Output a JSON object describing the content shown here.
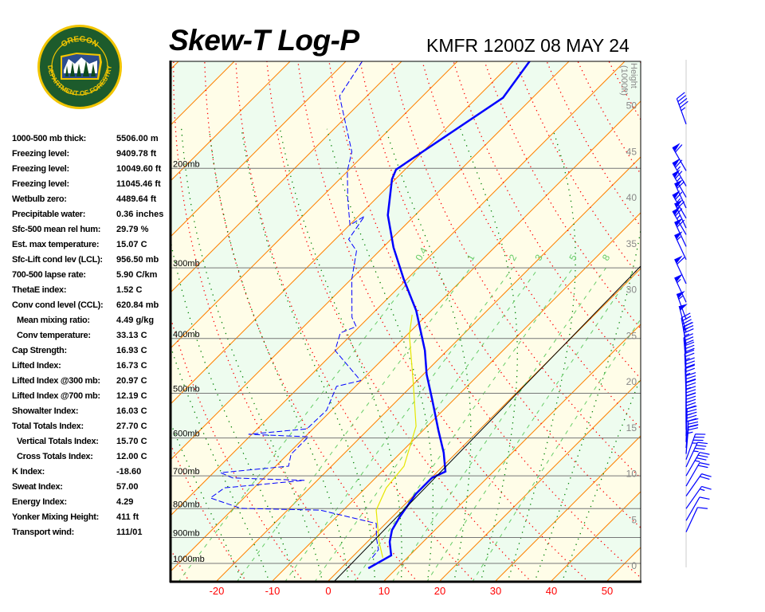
{
  "title": "Skew-T Log-P",
  "station_time": "KMFR 1200Z 08 MAY 24",
  "logo": {
    "top_text": "OREGON",
    "bottom_text": "DEPARTMENT OF FORESTRY",
    "colors": {
      "ring": "#f2c500",
      "field": "#1d5b2c"
    }
  },
  "stats": [
    {
      "label": "1000-500 mb thick:",
      "value": "5506.00 m",
      "indent": false
    },
    {
      "label": "Freezing level:",
      "value": "9409.78 ft",
      "indent": false
    },
    {
      "label": "Freezing level:",
      "value": "10049.60 ft",
      "indent": false
    },
    {
      "label": "Freezing level:",
      "value": "11045.46 ft",
      "indent": false
    },
    {
      "label": "Wetbulb zero:",
      "value": "4489.64 ft",
      "indent": false
    },
    {
      "label": "Precipitable water:",
      "value": "0.36 inches",
      "indent": false
    },
    {
      "label": "Sfc-500 mean rel hum:",
      "value": "29.79 %",
      "indent": false
    },
    {
      "label": "Est. max temperature:",
      "value": "15.07 C",
      "indent": false
    },
    {
      "label": "Sfc-Lift cond lev (LCL):",
      "value": "956.50 mb",
      "indent": false
    },
    {
      "label": "700-500 lapse rate:",
      "value": "5.90 C/km",
      "indent": false
    },
    {
      "label": "ThetaE index:",
      "value": "1.52 C",
      "indent": false
    },
    {
      "label": "Conv cond level (CCL):",
      "value": "620.84 mb",
      "indent": false
    },
    {
      "label": "Mean mixing ratio:",
      "value": "4.49 g/kg",
      "indent": true
    },
    {
      "label": "Conv temperature:",
      "value": "33.13 C",
      "indent": true
    },
    {
      "label": "Cap Strength:",
      "value": "16.93 C",
      "indent": false
    },
    {
      "label": "Lifted Index:",
      "value": "16.73 C",
      "indent": false
    },
    {
      "label": "Lifted Index @300 mb:",
      "value": "20.97 C",
      "indent": false
    },
    {
      "label": "Lifted Index @700 mb:",
      "value": "12.19 C",
      "indent": false
    },
    {
      "label": "Showalter Index:",
      "value": "16.03 C",
      "indent": false
    },
    {
      "label": "Total Totals Index:",
      "value": "27.70 C",
      "indent": false
    },
    {
      "label": "Vertical Totals Index:",
      "value": "15.70 C",
      "indent": true
    },
    {
      "label": "Cross Totals Index:",
      "value": "12.00 C",
      "indent": true
    },
    {
      "label": "K Index:",
      "value": "-18.60",
      "indent": false
    },
    {
      "label": "Sweat Index:",
      "value": "57.00",
      "indent": false
    },
    {
      "label": "Energy Index:",
      "value": "4.29",
      "indent": false
    },
    {
      "label": "Yonker Mixing Height:",
      "value": "411 ft",
      "indent": false
    },
    {
      "label": "Transport wind:",
      "value": "111/01",
      "indent": false
    }
  ],
  "chart_data": {
    "type": "skew-t log-p",
    "pressure_range_mb": [
      1074,
      129
    ],
    "pressure_labels": [
      "200mb",
      "300mb",
      "400mb",
      "500mb",
      "600mb",
      "700mb",
      "800mb",
      "900mb",
      "1000mb"
    ],
    "pressure_levels": [
      200,
      300,
      400,
      500,
      600,
      700,
      800,
      900,
      1000
    ],
    "temperature_ticks": [
      -20,
      -10,
      0,
      10,
      20,
      30,
      40,
      50
    ],
    "height_axis_label": "Height (1000ft)",
    "height_ticks": [
      0,
      5,
      10,
      15,
      20,
      25,
      30,
      35,
      40,
      45,
      50
    ],
    "mixing_ratio_labels": [
      "0.4",
      "1",
      "2",
      "3",
      "5",
      "8"
    ],
    "mixing_ratio_values": [
      0.4,
      1,
      2,
      3,
      5,
      8,
      12,
      20
    ],
    "colors": {
      "temperature": "#0000ff",
      "dewpoint": "#0000ff",
      "wetbulb": "#e6e600",
      "isotherm": "#ff8000",
      "dry_adiabat": "#ff0000",
      "moist_adiabat": "#008000",
      "mixing_ratio": "#66cc66",
      "band_a": "#fffde8",
      "band_b": "#eefcef"
    },
    "temperature_profile": [
      {
        "p": 1020,
        "t": 4.9
      },
      {
        "p": 968,
        "t": 6.7
      },
      {
        "p": 916,
        "t": 4.0
      },
      {
        "p": 873,
        "t": 2.3
      },
      {
        "p": 826,
        "t": 1.3
      },
      {
        "p": 754,
        "t": 0.1
      },
      {
        "p": 706,
        "t": 0.1
      },
      {
        "p": 688,
        "t": 1.4
      },
      {
        "p": 637,
        "t": -2.3
      },
      {
        "p": 581,
        "t": -7.3
      },
      {
        "p": 511,
        "t": -14.1
      },
      {
        "p": 463,
        "t": -19.4
      },
      {
        "p": 420,
        "t": -24.0
      },
      {
        "p": 357,
        "t": -32.7
      },
      {
        "p": 314,
        "t": -40.6
      },
      {
        "p": 276,
        "t": -48.1
      },
      {
        "p": 242,
        "t": -54.9
      },
      {
        "p": 209,
        "t": -60.6
      },
      {
        "p": 201,
        "t": -61.6
      },
      {
        "p": 150,
        "t": -55.3
      },
      {
        "p": 129,
        "t": -57.1
      }
    ],
    "dewpoint_profile": [
      {
        "p": 977,
        "t": 3.7
      },
      {
        "p": 946,
        "t": 3.4
      },
      {
        "p": 901,
        "t": 0.9
      },
      {
        "p": 850,
        "t": -1.7
      },
      {
        "p": 805,
        "t": -14.1
      },
      {
        "p": 799,
        "t": -28.7
      },
      {
        "p": 766,
        "t": -36.0
      },
      {
        "p": 735,
        "t": -35.3
      },
      {
        "p": 713,
        "t": -22.3
      },
      {
        "p": 706,
        "t": -35.6
      },
      {
        "p": 691,
        "t": -38.7
      },
      {
        "p": 673,
        "t": -27.7
      },
      {
        "p": 641,
        "t": -29.4
      },
      {
        "p": 597,
        "t": -29.4
      },
      {
        "p": 591,
        "t": -40.6
      },
      {
        "p": 578,
        "t": -31.1
      },
      {
        "p": 536,
        "t": -30.9
      },
      {
        "p": 486,
        "t": -33.4
      },
      {
        "p": 475,
        "t": -30.1
      },
      {
        "p": 420,
        "t": -40.1
      },
      {
        "p": 391,
        "t": -42.3
      },
      {
        "p": 381,
        "t": -40.6
      },
      {
        "p": 367,
        "t": -43.0
      },
      {
        "p": 314,
        "t": -49.9
      },
      {
        "p": 280,
        "t": -54.1
      },
      {
        "p": 267,
        "t": -57.6
      },
      {
        "p": 243,
        "t": -58.9
      },
      {
        "p": 252,
        "t": -59.9
      },
      {
        "p": 227,
        "t": -64.9
      },
      {
        "p": 202,
        "t": -70.1
      },
      {
        "p": 187,
        "t": -72.7
      },
      {
        "p": 149,
        "t": -84.9
      },
      {
        "p": 129,
        "t": -87.1
      }
    ],
    "wetbulb_profile": [
      {
        "p": 977,
        "t": 5.6
      },
      {
        "p": 916,
        "t": 2.1
      },
      {
        "p": 805,
        "t": -4.1
      },
      {
        "p": 735,
        "t": -6.3
      },
      {
        "p": 673,
        "t": -7.0
      },
      {
        "p": 572,
        "t": -12.0
      },
      {
        "p": 479,
        "t": -20.3
      },
      {
        "p": 394,
        "t": -29.6
      },
      {
        "p": 363,
        "t": -32.7
      }
    ],
    "winds": [
      {
        "p": 167,
        "dir": 340,
        "kt": 45
      },
      {
        "p": 202,
        "dir": 330,
        "kt": 60
      },
      {
        "p": 215,
        "dir": 330,
        "kt": 65
      },
      {
        "p": 225,
        "dir": 330,
        "kt": 65
      },
      {
        "p": 235,
        "dir": 335,
        "kt": 60
      },
      {
        "p": 245,
        "dir": 330,
        "kt": 65
      },
      {
        "p": 255,
        "dir": 335,
        "kt": 60
      },
      {
        "p": 262,
        "dir": 330,
        "kt": 65
      },
      {
        "p": 275,
        "dir": 335,
        "kt": 60
      },
      {
        "p": 290,
        "dir": 335,
        "kt": 55
      },
      {
        "p": 320,
        "dir": 335,
        "kt": 60
      },
      {
        "p": 345,
        "dir": 335,
        "kt": 55
      },
      {
        "p": 370,
        "dir": 340,
        "kt": 55
      },
      {
        "p": 390,
        "dir": 345,
        "kt": 50
      },
      {
        "p": 410,
        "dir": 350,
        "kt": 45
      },
      {
        "p": 425,
        "dir": 355,
        "kt": 35
      },
      {
        "p": 445,
        "dir": 355,
        "kt": 30
      },
      {
        "p": 460,
        "dir": 357,
        "kt": 30
      },
      {
        "p": 475,
        "dir": 357,
        "kt": 25
      },
      {
        "p": 490,
        "dir": 358,
        "kt": 30
      },
      {
        "p": 505,
        "dir": 358,
        "kt": 25
      },
      {
        "p": 520,
        "dir": 0,
        "kt": 30
      },
      {
        "p": 535,
        "dir": 0,
        "kt": 25
      },
      {
        "p": 550,
        "dir": 0,
        "kt": 30
      },
      {
        "p": 565,
        "dir": 0,
        "kt": 25
      },
      {
        "p": 580,
        "dir": 0,
        "kt": 30
      },
      {
        "p": 595,
        "dir": 2,
        "kt": 25
      },
      {
        "p": 610,
        "dir": 2,
        "kt": 30
      },
      {
        "p": 625,
        "dir": 5,
        "kt": 30
      },
      {
        "p": 640,
        "dir": 5,
        "kt": 25
      },
      {
        "p": 655,
        "dir": 20,
        "kt": 35
      },
      {
        "p": 675,
        "dir": 25,
        "kt": 35
      },
      {
        "p": 700,
        "dir": 30,
        "kt": 35
      },
      {
        "p": 730,
        "dir": 30,
        "kt": 20
      },
      {
        "p": 760,
        "dir": 35,
        "kt": 20
      },
      {
        "p": 800,
        "dir": 35,
        "kt": 15
      },
      {
        "p": 840,
        "dir": 30,
        "kt": 10
      },
      {
        "p": 880,
        "dir": 25,
        "kt": 10
      }
    ]
  }
}
